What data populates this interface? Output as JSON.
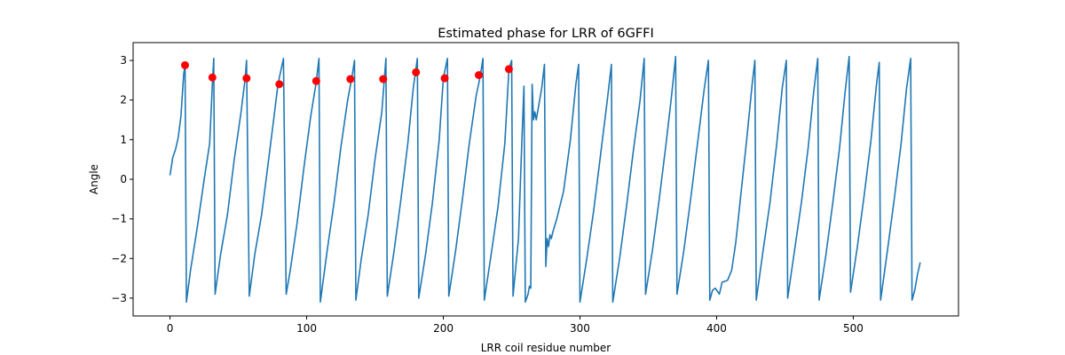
{
  "chart_data": {
    "type": "line",
    "title": "Estimated phase for LRR of 6GFFI",
    "xlabel": "LRR coil residue number",
    "ylabel": "Angle",
    "xlim": [
      -27,
      577
    ],
    "ylim": [
      -3.45,
      3.45
    ],
    "xticks": [
      0,
      100,
      200,
      300,
      400,
      500
    ],
    "yticks": [
      -3,
      -2,
      -1,
      0,
      1,
      2,
      3
    ],
    "grid": false,
    "colors": {
      "line": "#1f77b4",
      "markers": "#ff0000"
    },
    "series": [
      {
        "kind": "line",
        "values": [
          [
            0,
            0.1
          ],
          [
            2,
            0.55
          ],
          [
            4,
            0.75
          ],
          [
            6,
            1.05
          ],
          [
            8,
            1.6
          ],
          [
            10,
            2.65
          ],
          [
            11,
            2.88
          ],
          [
            12,
            -3.1
          ],
          [
            15,
            -2.3
          ],
          [
            20,
            -1.2
          ],
          [
            25,
            0.0
          ],
          [
            29,
            0.9
          ],
          [
            31,
            2.4
          ],
          [
            32,
            3.05
          ],
          [
            33,
            -2.9
          ],
          [
            37,
            -1.9
          ],
          [
            42,
            -0.9
          ],
          [
            47,
            0.5
          ],
          [
            52,
            1.7
          ],
          [
            55,
            2.55
          ],
          [
            56,
            3.0
          ],
          [
            58,
            -2.95
          ],
          [
            62,
            -1.9
          ],
          [
            67,
            -0.9
          ],
          [
            72,
            0.45
          ],
          [
            76,
            1.55
          ],
          [
            79,
            2.4
          ],
          [
            83,
            3.05
          ],
          [
            85,
            -2.9
          ],
          [
            88,
            -2.3
          ],
          [
            93,
            -1.1
          ],
          [
            98,
            0.3
          ],
          [
            103,
            1.6
          ],
          [
            107,
            2.45
          ],
          [
            109,
            3.05
          ],
          [
            110,
            -3.1
          ],
          [
            115,
            -1.8
          ],
          [
            120,
            -0.6
          ],
          [
            125,
            0.8
          ],
          [
            130,
            2.0
          ],
          [
            133,
            2.55
          ],
          [
            135,
            3.0
          ],
          [
            136,
            -3.05
          ],
          [
            140,
            -2.0
          ],
          [
            145,
            -0.9
          ],
          [
            150,
            0.5
          ],
          [
            155,
            1.7
          ],
          [
            158,
            3.05
          ],
          [
            159,
            -2.95
          ],
          [
            164,
            -1.8
          ],
          [
            169,
            -0.5
          ],
          [
            174,
            0.9
          ],
          [
            178,
            2.3
          ],
          [
            181,
            3.05
          ],
          [
            182,
            -3.0
          ],
          [
            187,
            -1.9
          ],
          [
            192,
            -0.6
          ],
          [
            197,
            1.0
          ],
          [
            200,
            2.55
          ],
          [
            203,
            3.05
          ],
          [
            204,
            -2.95
          ],
          [
            209,
            -1.8
          ],
          [
            214,
            -0.5
          ],
          [
            219,
            0.9
          ],
          [
            224,
            2.1
          ],
          [
            227,
            2.6
          ],
          [
            229,
            3.05
          ],
          [
            230,
            -3.05
          ],
          [
            235,
            -1.9
          ],
          [
            240,
            -0.7
          ],
          [
            245,
            0.9
          ],
          [
            248,
            2.78
          ],
          [
            250,
            3.0
          ],
          [
            251,
            -2.95
          ],
          [
            255,
            -1.5
          ],
          [
            257,
            0.5
          ],
          [
            259,
            2.35
          ],
          [
            260,
            -3.1
          ],
          [
            262,
            -2.9
          ],
          [
            263,
            -2.7
          ],
          [
            264,
            -2.75
          ],
          [
            265,
            2.4
          ],
          [
            266,
            1.5
          ],
          [
            267,
            1.7
          ],
          [
            268,
            1.5
          ],
          [
            272,
            2.3
          ],
          [
            274,
            2.9
          ],
          [
            275,
            -2.2
          ],
          [
            276,
            -1.5
          ],
          [
            277,
            -1.7
          ],
          [
            278,
            -1.4
          ],
          [
            279,
            -1.5
          ],
          [
            280,
            -1.35
          ],
          [
            283,
            -1.0
          ],
          [
            288,
            -0.3
          ],
          [
            293,
            1.0
          ],
          [
            297,
            2.4
          ],
          [
            299,
            2.9
          ],
          [
            300,
            -3.1
          ],
          [
            305,
            -2.0
          ],
          [
            310,
            -0.8
          ],
          [
            315,
            0.6
          ],
          [
            320,
            2.0
          ],
          [
            323,
            2.9
          ],
          [
            324,
            -3.1
          ],
          [
            329,
            -2.0
          ],
          [
            334,
            -0.7
          ],
          [
            339,
            0.7
          ],
          [
            344,
            2.0
          ],
          [
            347,
            3.05
          ],
          [
            348,
            -2.9
          ],
          [
            353,
            -1.8
          ],
          [
            358,
            -0.5
          ],
          [
            363,
            0.9
          ],
          [
            367,
            2.1
          ],
          [
            370,
            3.1
          ],
          [
            371,
            -2.9
          ],
          [
            376,
            -1.8
          ],
          [
            381,
            -0.5
          ],
          [
            386,
            0.9
          ],
          [
            391,
            2.3
          ],
          [
            394,
            3.0
          ],
          [
            395,
            -3.05
          ],
          [
            397,
            -2.8
          ],
          [
            399,
            -2.75
          ],
          [
            401,
            -2.85
          ],
          [
            402,
            -2.9
          ],
          [
            404,
            -2.6
          ],
          [
            408,
            -2.55
          ],
          [
            411,
            -2.3
          ],
          [
            414,
            -1.6
          ],
          [
            418,
            -0.3
          ],
          [
            422,
            1.0
          ],
          [
            426,
            2.4
          ],
          [
            428,
            3.0
          ],
          [
            429,
            -3.05
          ],
          [
            434,
            -1.8
          ],
          [
            439,
            -0.6
          ],
          [
            444,
            0.9
          ],
          [
            448,
            2.3
          ],
          [
            451,
            3.0
          ],
          [
            452,
            -3.0
          ],
          [
            457,
            -1.8
          ],
          [
            462,
            -0.6
          ],
          [
            467,
            0.8
          ],
          [
            471,
            2.2
          ],
          [
            474,
            3.05
          ],
          [
            475,
            -3.05
          ],
          [
            480,
            -1.9
          ],
          [
            485,
            -0.6
          ],
          [
            490,
            0.8
          ],
          [
            494,
            2.2
          ],
          [
            497,
            3.1
          ],
          [
            498,
            -2.85
          ],
          [
            503,
            -1.7
          ],
          [
            508,
            -0.4
          ],
          [
            513,
            1.0
          ],
          [
            517,
            2.4
          ],
          [
            519,
            2.95
          ],
          [
            520,
            -3.05
          ],
          [
            525,
            -1.8
          ],
          [
            530,
            -0.5
          ],
          [
            535,
            0.9
          ],
          [
            539,
            2.3
          ],
          [
            542,
            3.05
          ],
          [
            543,
            -3.05
          ],
          [
            545,
            -2.8
          ],
          [
            547,
            -2.4
          ],
          [
            549,
            -2.1
          ]
        ]
      },
      {
        "kind": "scatter",
        "values": [
          [
            11,
            2.88
          ],
          [
            31,
            2.57
          ],
          [
            56,
            2.55
          ],
          [
            80,
            2.4
          ],
          [
            107,
            2.48
          ],
          [
            132,
            2.53
          ],
          [
            156,
            2.53
          ],
          [
            180,
            2.7
          ],
          [
            201,
            2.55
          ],
          [
            226,
            2.63
          ],
          [
            248,
            2.78
          ]
        ]
      }
    ]
  }
}
